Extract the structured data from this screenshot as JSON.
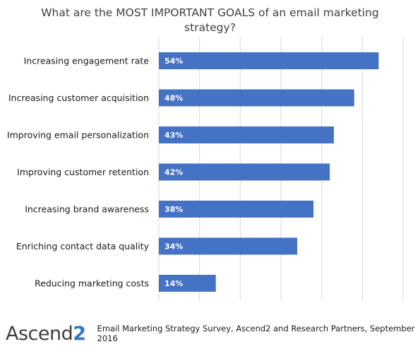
{
  "chart_data": {
    "type": "bar",
    "orientation": "horizontal",
    "title": "What are the MOST IMPORTANT GOALS of an email marketing strategy?",
    "categories": [
      "Increasing engagement rate",
      "Increasing customer acquisition",
      "Improving email personalization",
      "Improving customer retention",
      "Increasing brand awareness",
      "Enriching contact data quality",
      "Reducing marketing costs"
    ],
    "values": [
      54,
      48,
      43,
      42,
      38,
      34,
      14
    ],
    "value_labels": [
      "54%",
      "48%",
      "43%",
      "42%",
      "38%",
      "34%",
      "14%"
    ],
    "xlim": [
      0,
      60
    ],
    "grid": true,
    "bar_color": "#4472c4"
  },
  "footer": {
    "logo_text": "Ascend",
    "logo_digit": "2",
    "source": "Email Marketing Strategy Survey, Ascend2 and Research Partners, September 2016"
  },
  "colors": {
    "bar": "#4472c4",
    "grid": "#d9d9d9",
    "logo_accent": "#2f78c8"
  }
}
